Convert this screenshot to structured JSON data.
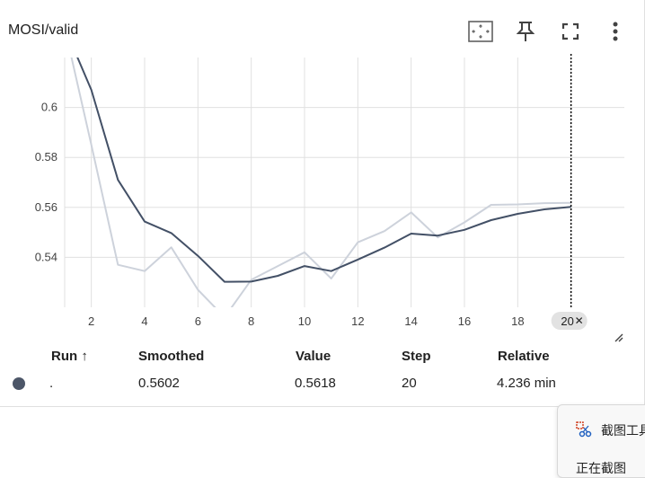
{
  "card": {
    "title": "MOSI/valid",
    "tools": [
      "fit-to-data-icon",
      "pin-icon",
      "fullscreen-icon",
      "more-vert-icon"
    ]
  },
  "chart_data": {
    "type": "line",
    "title": "MOSI/valid",
    "x_range": [
      1,
      22
    ],
    "y_range": [
      0.52,
      0.62
    ],
    "x_ticks": [
      2,
      4,
      6,
      8,
      10,
      12,
      14,
      16,
      18,
      20
    ],
    "y_ticks": [
      0.54,
      0.56,
      0.58,
      0.6
    ],
    "cursor_step": 20,
    "cursor_label": "20",
    "grid": true,
    "series": [
      {
        "role": "raw",
        "color": "#cdd2db",
        "x": [
          1,
          2,
          3,
          4,
          5,
          6,
          7,
          8,
          9,
          10,
          11,
          12,
          13,
          14,
          15,
          16,
          17,
          18,
          19,
          20
        ],
        "y": [
          0.632,
          0.585,
          0.537,
          0.5345,
          0.544,
          0.527,
          0.516,
          0.531,
          0.5365,
          0.542,
          0.5315,
          0.546,
          0.5505,
          0.558,
          0.548,
          0.554,
          0.561,
          0.5612,
          0.5617,
          0.5618
        ]
      },
      {
        "role": "smoothed",
        "color": "#435066",
        "x": [
          1,
          2,
          3,
          4,
          5,
          6,
          7,
          8,
          9,
          10,
          11,
          12,
          13,
          14,
          15,
          16,
          17,
          18,
          19,
          20
        ],
        "y": [
          0.632,
          0.607,
          0.571,
          0.5543,
          0.5497,
          0.5406,
          0.5302,
          0.5303,
          0.5326,
          0.5365,
          0.5345,
          0.5391,
          0.5439,
          0.5495,
          0.5487,
          0.551,
          0.5549,
          0.5574,
          0.5592,
          0.5602
        ]
      }
    ]
  },
  "table": {
    "headers": {
      "run": "Run ↑",
      "smoothed": "Smoothed",
      "value": "Value",
      "step": "Step",
      "relative": "Relative"
    },
    "row": {
      "run": ".",
      "smoothed": "0.5602",
      "value": "0.5618",
      "step": "20",
      "relative": "4.236 min"
    },
    "run_color": "#4c5668"
  },
  "popup": {
    "label": "截图工具",
    "label2": "正在截图"
  }
}
